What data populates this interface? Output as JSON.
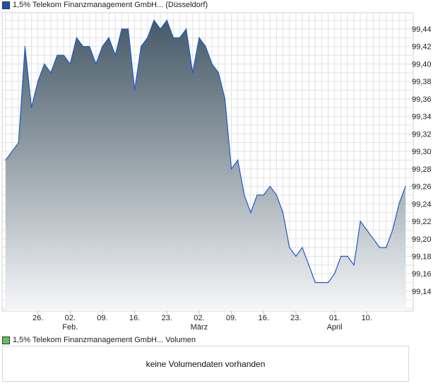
{
  "legend_main": "1,5% Telekom Finanzmanagement GmbH... (Düsseldorf)",
  "legend_volume": "1,5% Telekom Finanzmanagement GmbH... Volumen",
  "volume_message": "keine Volumendaten vorhanden",
  "colors": {
    "line": "#1e5bc6",
    "fill_top": "#465a68",
    "fill_bottom": "#f6f7f9",
    "main_swatch": "#1e4fb0",
    "volume_swatch": "#5dc45d"
  },
  "chart_data": {
    "type": "area",
    "title": "1,5% Telekom Finanzmanagement GmbH... (Düsseldorf)",
    "ylim": [
      99.12,
      99.46
    ],
    "yticks": [
      "99,14",
      "99,16",
      "99,18",
      "99,20",
      "99,22",
      "99,24",
      "99,26",
      "99,28",
      "99,30",
      "99,32",
      "99,34",
      "99,36",
      "99,38",
      "99,40",
      "99,42",
      "99,44"
    ],
    "xticks": [
      {
        "i": 5,
        "label": "26.",
        "sub": ""
      },
      {
        "i": 10,
        "label": "02.",
        "sub": "Feb."
      },
      {
        "i": 15,
        "label": "09.",
        "sub": ""
      },
      {
        "i": 20,
        "label": "16.",
        "sub": ""
      },
      {
        "i": 25,
        "label": "23.",
        "sub": ""
      },
      {
        "i": 30,
        "label": "02.",
        "sub": "März"
      },
      {
        "i": 35,
        "label": "09.",
        "sub": ""
      },
      {
        "i": 40,
        "label": "16.",
        "sub": ""
      },
      {
        "i": 45,
        "label": "23.",
        "sub": ""
      },
      {
        "i": 51,
        "label": "01.",
        "sub": "April"
      },
      {
        "i": 56,
        "label": "10.",
        "sub": ""
      }
    ],
    "grid": true,
    "values": [
      99.29,
      99.3,
      99.31,
      99.42,
      99.35,
      99.38,
      99.4,
      99.39,
      99.41,
      99.41,
      99.4,
      99.43,
      99.42,
      99.42,
      99.4,
      99.42,
      99.43,
      99.41,
      99.44,
      99.44,
      99.37,
      99.42,
      99.43,
      99.45,
      99.44,
      99.45,
      99.43,
      99.43,
      99.44,
      99.39,
      99.43,
      99.42,
      99.4,
      99.39,
      99.36,
      99.28,
      99.29,
      99.25,
      99.23,
      99.25,
      99.25,
      99.26,
      99.25,
      99.23,
      99.19,
      99.18,
      99.19,
      99.17,
      99.15,
      99.15,
      99.15,
      99.16,
      99.18,
      99.18,
      99.17,
      99.22,
      99.21,
      99.2,
      99.19,
      99.19,
      99.21,
      99.24,
      99.26
    ]
  }
}
